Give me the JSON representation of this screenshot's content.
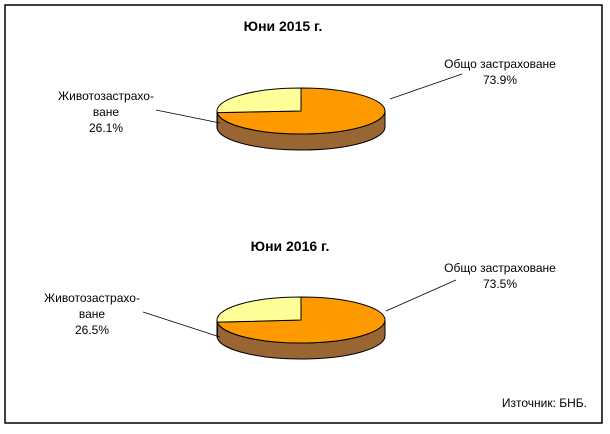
{
  "colors": {
    "general_top": "#FF9900",
    "general_side": "#996633",
    "life_top": "#FFFF99",
    "life_side": "#999966",
    "outline": "#000000",
    "frame": "#000000"
  },
  "source": "Източник: БНБ.",
  "chart_data": [
    {
      "type": "pie",
      "title": "Юни 2015 г.",
      "slices": [
        {
          "label": "Общо застраховане",
          "value": 73.9,
          "value_label": "73.9%"
        },
        {
          "label_lines": [
            "Животозастрахо-",
            "ване"
          ],
          "value": 26.1,
          "value_label": "26.1%"
        }
      ]
    },
    {
      "type": "pie",
      "title": "Юни 2016 г.",
      "slices": [
        {
          "label": "Общо застраховане",
          "value": 73.5,
          "value_label": "73.5%"
        },
        {
          "label_lines": [
            "Животозастрахо-",
            "ване"
          ],
          "value": 26.5,
          "value_label": "26.5%"
        }
      ]
    }
  ]
}
